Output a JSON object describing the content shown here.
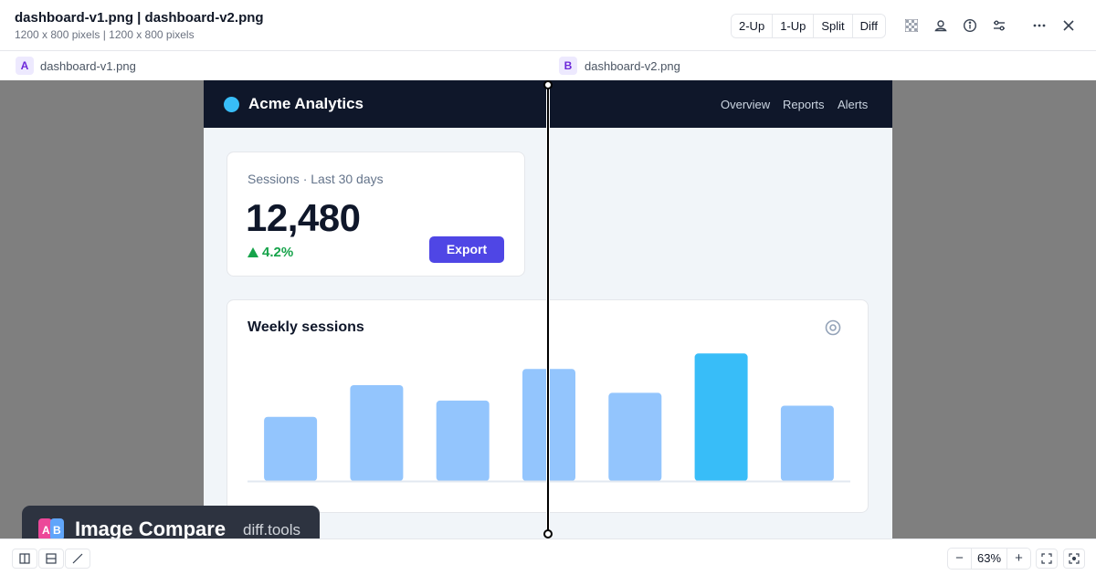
{
  "header": {
    "title": "dashboard-v1.png | dashboard-v2.png",
    "subtitle": "1200 x 800 pixels | 1200 x 800 pixels",
    "modes": [
      "2-Up",
      "1-Up",
      "Split",
      "Diff"
    ]
  },
  "header_icons": [
    "checkerboard-icon",
    "user-pin-icon",
    "info-icon",
    "sliders-icon",
    "more-icon",
    "close-icon"
  ],
  "files": {
    "a": {
      "badge": "A",
      "name": "dashboard-v1.png"
    },
    "b": {
      "badge": "B",
      "name": "dashboard-v2.png"
    }
  },
  "app": {
    "brand": "Acme Analytics",
    "nav": [
      "Overview",
      "Reports",
      "Alerts"
    ],
    "stat_label": "Sessions · Last 30 days",
    "stat_value": "12,480",
    "stat_delta": "4.2%",
    "export_label": "Export",
    "chart_title": "Weekly sessions"
  },
  "chart_data": {
    "type": "bar",
    "title": "Weekly sessions",
    "values": [
      75,
      112,
      94,
      131,
      103,
      149,
      88
    ],
    "highlight_index": 5,
    "ylim": [
      0,
      160
    ],
    "colors": {
      "bar": "#93c5fd",
      "highlight": "#38bdf8"
    }
  },
  "watermark": {
    "name": "Image Compare",
    "url": "diff.tools"
  },
  "footer": {
    "zoom": "63%",
    "zoom_out": "−",
    "zoom_in": "+"
  },
  "colors": {
    "accent": "#4f46e5",
    "positive": "#16a34a",
    "brand_dot": "#38bdf8",
    "navbar": "#0f172a"
  }
}
